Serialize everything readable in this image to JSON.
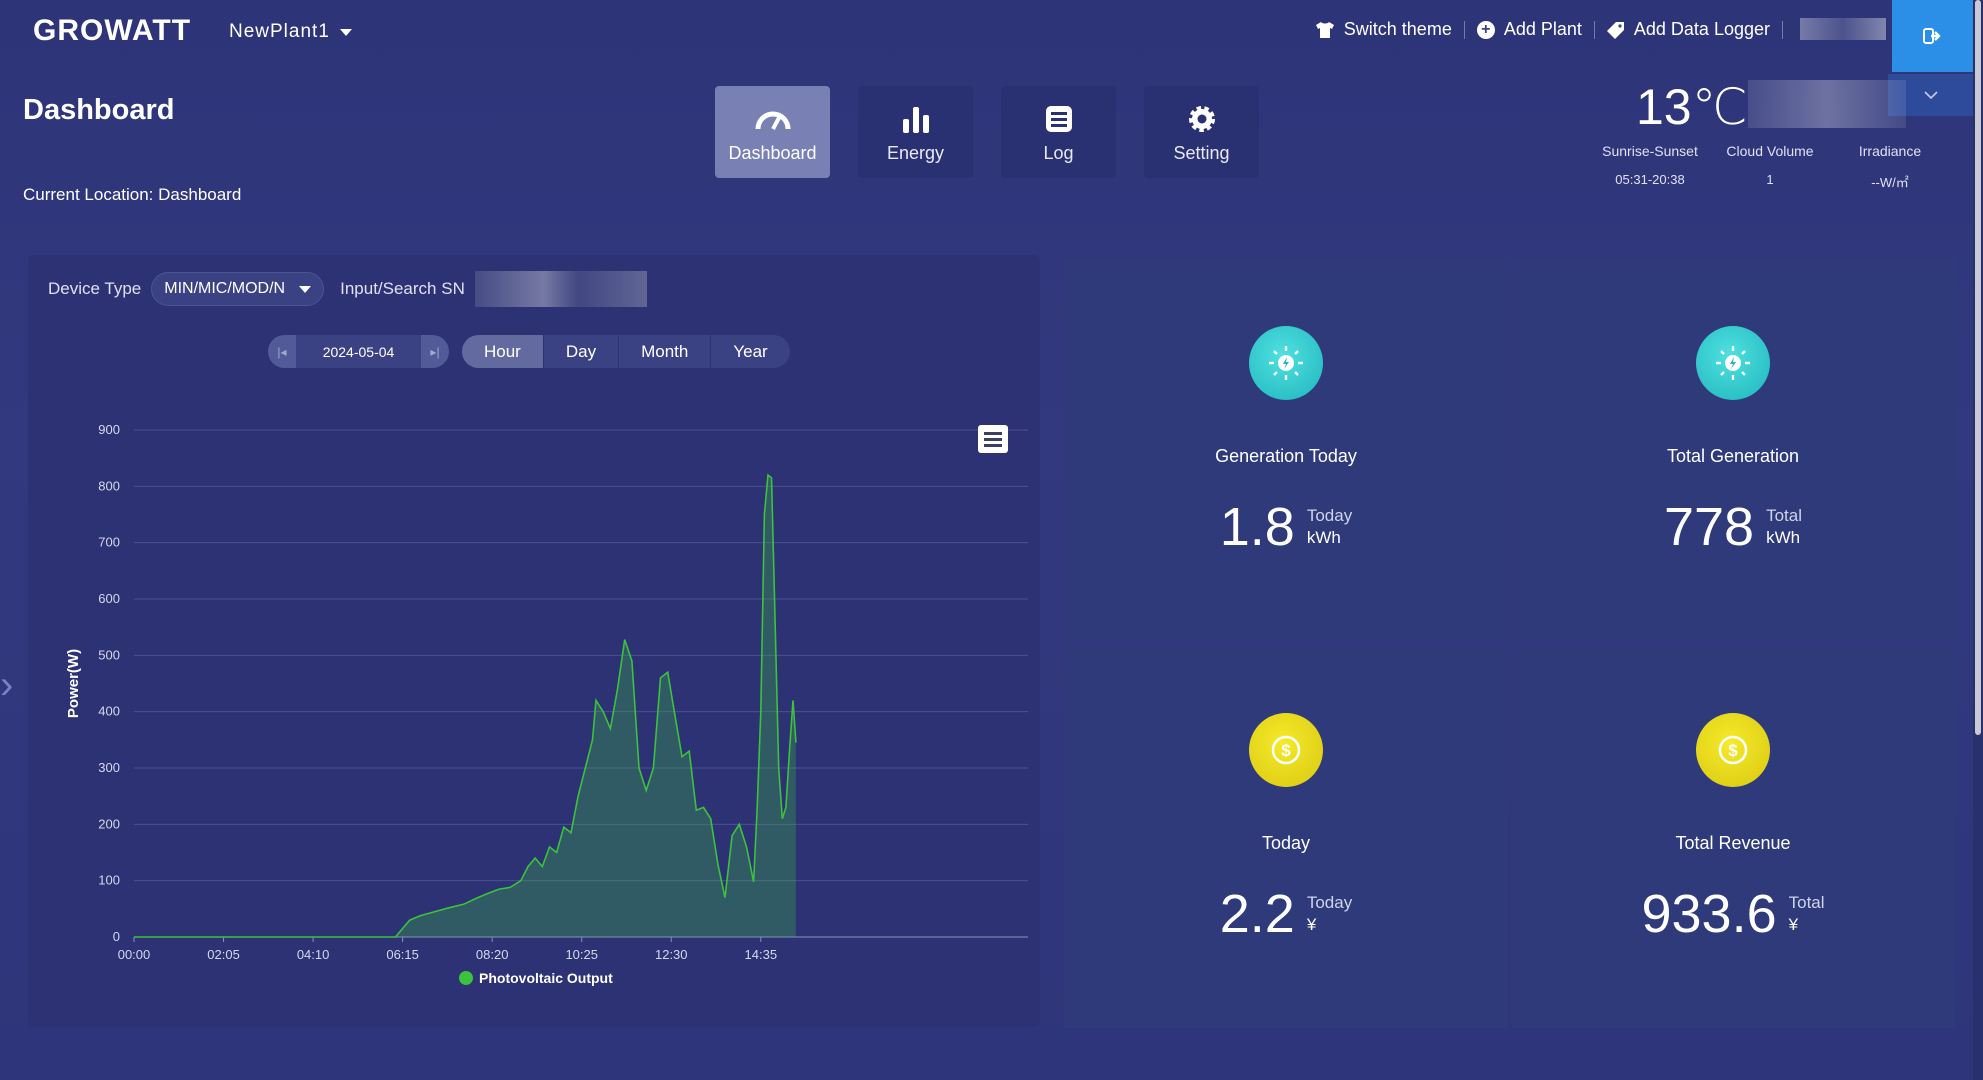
{
  "brand": "GROWATT",
  "plant_selector": "NewPlant1",
  "top_actions": {
    "switch_theme": "Switch theme",
    "add_plant": "Add Plant",
    "add_data_logger": "Add Data Logger"
  },
  "page_title": "Dashboard",
  "location": "Current Location: Dashboard",
  "tabs": [
    {
      "label": "Dashboard",
      "icon": "gauge-icon",
      "active": true
    },
    {
      "label": "Energy",
      "icon": "bar-chart-icon",
      "active": false
    },
    {
      "label": "Log",
      "icon": "log-icon",
      "active": false
    },
    {
      "label": "Setting",
      "icon": "gear-icon",
      "active": false
    }
  ],
  "weather": {
    "temperature": "13℃",
    "sunrise_label": "Sunrise-Sunset",
    "sunrise_value": "05:31-20:38",
    "cloud_label": "Cloud Volume",
    "cloud_value": "1",
    "irradiance_label": "Irradiance",
    "irradiance_value": "--W/㎡"
  },
  "filter": {
    "device_type_label": "Device Type",
    "device_type_value": "MIN/MIC/MOD/N",
    "sn_label": "Input/Search SN"
  },
  "date": "2024-05-04",
  "range_tabs": [
    "Hour",
    "Day",
    "Month",
    "Year"
  ],
  "active_range": "Hour",
  "chart_data": {
    "type": "area",
    "ylabel": "Power(W)",
    "ylim": [
      0,
      900
    ],
    "yticks": [
      0,
      100,
      200,
      300,
      400,
      500,
      600,
      700,
      800,
      900
    ],
    "xticks": [
      "00:00",
      "02:05",
      "04:10",
      "06:15",
      "08:20",
      "10:25",
      "12:30",
      "14:35"
    ],
    "series": [
      {
        "name": "Photovoltaic Output",
        "color": "#3cc23c",
        "points": [
          [
            "00:00",
            0
          ],
          [
            "06:05",
            0
          ],
          [
            "06:15",
            15
          ],
          [
            "06:25",
            30
          ],
          [
            "06:40",
            38
          ],
          [
            "07:00",
            45
          ],
          [
            "07:20",
            52
          ],
          [
            "07:40",
            58
          ],
          [
            "08:00",
            70
          ],
          [
            "08:15",
            78
          ],
          [
            "08:30",
            85
          ],
          [
            "08:45",
            88
          ],
          [
            "09:00",
            100
          ],
          [
            "09:10",
            125
          ],
          [
            "09:20",
            140
          ],
          [
            "09:30",
            125
          ],
          [
            "09:40",
            160
          ],
          [
            "09:50",
            150
          ],
          [
            "10:00",
            195
          ],
          [
            "10:10",
            185
          ],
          [
            "10:20",
            250
          ],
          [
            "10:30",
            300
          ],
          [
            "10:40",
            350
          ],
          [
            "10:45",
            420
          ],
          [
            "10:55",
            400
          ],
          [
            "11:05",
            370
          ],
          [
            "11:15",
            440
          ],
          [
            "11:25",
            528
          ],
          [
            "11:35",
            490
          ],
          [
            "11:45",
            300
          ],
          [
            "11:55",
            260
          ],
          [
            "12:05",
            300
          ],
          [
            "12:15",
            460
          ],
          [
            "12:25",
            470
          ],
          [
            "12:35",
            395
          ],
          [
            "12:45",
            320
          ],
          [
            "12:55",
            330
          ],
          [
            "13:05",
            225
          ],
          [
            "13:15",
            230
          ],
          [
            "13:25",
            210
          ],
          [
            "13:35",
            130
          ],
          [
            "13:45",
            70
          ],
          [
            "13:55",
            180
          ],
          [
            "14:05",
            200
          ],
          [
            "14:15",
            160
          ],
          [
            "14:25",
            98
          ],
          [
            "14:30",
            230
          ],
          [
            "14:35",
            400
          ],
          [
            "14:40",
            750
          ],
          [
            "14:45",
            820
          ],
          [
            "14:50",
            815
          ],
          [
            "14:55",
            560
          ],
          [
            "15:00",
            300
          ],
          [
            "15:05",
            210
          ],
          [
            "15:10",
            230
          ],
          [
            "15:15",
            330
          ],
          [
            "15:20",
            420
          ],
          [
            "15:24",
            345
          ]
        ]
      }
    ]
  },
  "stats": [
    {
      "label": "Generation Today",
      "value": "1.8",
      "period": "Today",
      "unit": "kWh",
      "icon": "sun-bolt-icon"
    },
    {
      "label": "Total Generation",
      "value": "778",
      "period": "Total",
      "unit": "kWh",
      "icon": "sun-bolt-icon"
    },
    {
      "label": "Today",
      "value": "2.2",
      "period": "Today",
      "unit": "¥",
      "icon": "coin-icon"
    },
    {
      "label": "Total Revenue",
      "value": "933.6",
      "period": "Total",
      "unit": "¥",
      "icon": "coin-icon"
    }
  ]
}
